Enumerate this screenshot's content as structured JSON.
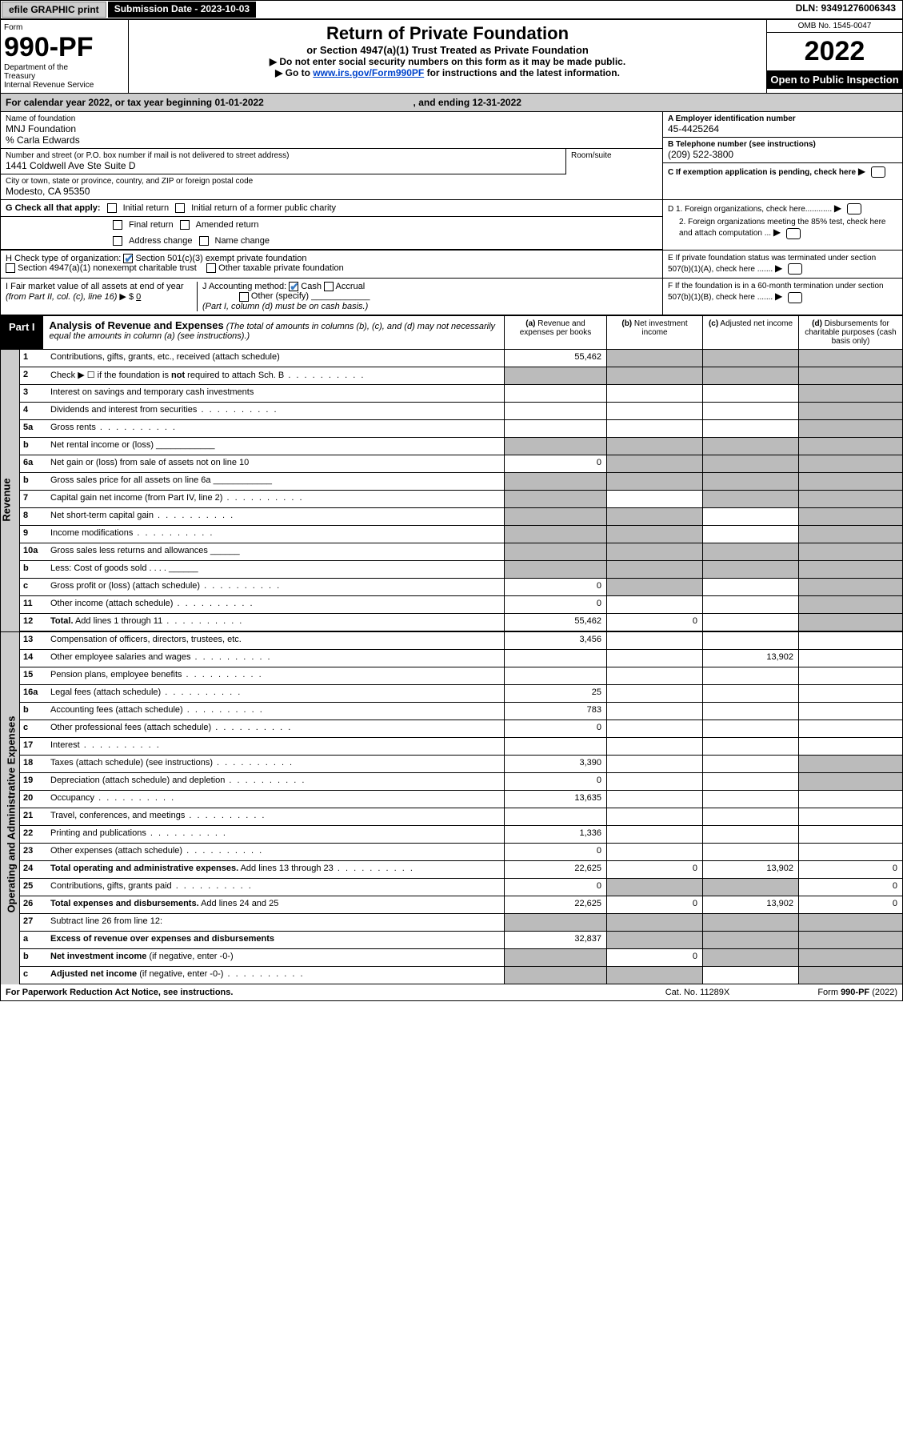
{
  "topbar": {
    "efile": "efile GRAPHIC print",
    "submission_label": "Submission Date - 2023-10-03",
    "dln": "DLN: 93491276006343"
  },
  "header": {
    "form_label": "Form",
    "form_number": "990-PF",
    "dept": "Department of the Treasury\nInternal Revenue Service",
    "title": "Return of Private Foundation",
    "subtitle": "or Section 4947(a)(1) Trust Treated as Private Foundation",
    "instr1": "▶ Do not enter social security numbers on this form as it may be made public.",
    "instr2_pre": "▶ Go to ",
    "instr2_link": "www.irs.gov/Form990PF",
    "instr2_post": " for instructions and the latest information.",
    "omb": "OMB No. 1545-0047",
    "year": "2022",
    "open": "Open to Public Inspection"
  },
  "calyear": {
    "pre": "For calendar year 2022, or tax year beginning ",
    "begin": "01-01-2022",
    "mid": ", and ending ",
    "end": "12-31-2022"
  },
  "info": {
    "name_label": "Name of foundation",
    "name": "MNJ Foundation",
    "care_of": "% Carla Edwards",
    "addr_label": "Number and street (or P.O. box number if mail is not delivered to street address)",
    "addr": "1441 Coldwell Ave Ste Suite D",
    "room_label": "Room/suite",
    "city_label": "City or town, state or province, country, and ZIP or foreign postal code",
    "city": "Modesto, CA  95350",
    "ein_label": "A Employer identification number",
    "ein": "45-4425264",
    "tel_label": "B Telephone number (see instructions)",
    "tel": "(209) 522-3800",
    "c_label": "C If exemption application is pending, check here",
    "d1": "D 1. Foreign organizations, check here............",
    "d2": "2. Foreign organizations meeting the 85% test, check here and attach computation ...",
    "e_label": "E  If private foundation status was terminated under section 507(b)(1)(A), check here .......",
    "f_label": "F  If the foundation is in a 60-month termination under section 507(b)(1)(B), check here .......",
    "g_label": "G Check all that apply:",
    "g_opts": [
      "Initial return",
      "Initial return of a former public charity",
      "Final return",
      "Amended return",
      "Address change",
      "Name change"
    ],
    "h_label": "H Check type of organization:",
    "h_opts": [
      "Section 501(c)(3) exempt private foundation",
      "Section 4947(a)(1) nonexempt charitable trust",
      "Other taxable private foundation"
    ],
    "i_label": "I Fair market value of all assets at end of year (from Part II, col. (c), line 16) ▶ $",
    "i_val": "0",
    "j_label": "J Accounting method:",
    "j_opts": [
      "Cash",
      "Accrual",
      "Other (specify)"
    ],
    "j_note": "(Part I, column (d) must be on cash basis.)"
  },
  "part1": {
    "tab": "Part I",
    "title": "Analysis of Revenue and Expenses",
    "title_note": " (The total of amounts in columns (b), (c), and (d) may not necessarily equal the amounts in column (a) (see instructions).)",
    "col_a": "(a)  Revenue and expenses per books",
    "col_b": "(b)  Net investment income",
    "col_c": "(c)  Adjusted net income",
    "col_d": "(d)  Disbursements for charitable purposes (cash basis only)"
  },
  "side_labels": {
    "revenue": "Revenue",
    "expenses": "Operating and Administrative Expenses"
  },
  "rows": [
    {
      "n": "1",
      "d": "Contributions, gifts, grants, etc., received (attach schedule)",
      "a": "55,462",
      "grey": [
        "b",
        "c",
        "d"
      ]
    },
    {
      "n": "2",
      "d": "Check ▶ ☐ if the foundation is <b>not</b> required to attach Sch. B",
      "dots": true,
      "grey": [
        "a",
        "b",
        "c",
        "d"
      ]
    },
    {
      "n": "3",
      "d": "Interest on savings and temporary cash investments",
      "grey": [
        "d"
      ]
    },
    {
      "n": "4",
      "d": "Dividends and interest from securities",
      "dots": true,
      "grey": [
        "d"
      ]
    },
    {
      "n": "5a",
      "d": "Gross rents",
      "dots": true,
      "grey": [
        "d"
      ]
    },
    {
      "n": "b",
      "d": "Net rental income or (loss)  ____________",
      "grey": [
        "a",
        "b",
        "c",
        "d"
      ]
    },
    {
      "n": "6a",
      "d": "Net gain or (loss) from sale of assets not on line 10",
      "a": "0",
      "grey": [
        "b",
        "c",
        "d"
      ]
    },
    {
      "n": "b",
      "d": "Gross sales price for all assets on line 6a ____________",
      "grey": [
        "a",
        "b",
        "c",
        "d"
      ]
    },
    {
      "n": "7",
      "d": "Capital gain net income (from Part IV, line 2)",
      "dots": true,
      "grey": [
        "a",
        "c",
        "d"
      ]
    },
    {
      "n": "8",
      "d": "Net short-term capital gain",
      "dots": true,
      "grey": [
        "a",
        "b",
        "d"
      ]
    },
    {
      "n": "9",
      "d": "Income modifications",
      "dots": true,
      "grey": [
        "a",
        "b",
        "d"
      ]
    },
    {
      "n": "10a",
      "d": "Gross sales less returns and allowances  ______",
      "grey": [
        "a",
        "b",
        "c",
        "d"
      ]
    },
    {
      "n": "b",
      "d": "Less: Cost of goods sold     .  .  .  .  ______",
      "grey": [
        "a",
        "b",
        "c",
        "d"
      ]
    },
    {
      "n": "c",
      "d": "Gross profit or (loss) (attach schedule)",
      "dots": true,
      "a": "0",
      "grey": [
        "b",
        "d"
      ]
    },
    {
      "n": "11",
      "d": "Other income (attach schedule)",
      "dots": true,
      "a": "0",
      "grey": [
        "d"
      ]
    },
    {
      "n": "12",
      "d": "<b>Total.</b> Add lines 1 through 11",
      "dots": true,
      "a": "55,462",
      "b": "0",
      "grey": [
        "d"
      ]
    },
    {
      "n": "13",
      "d": "Compensation of officers, directors, trustees, etc.",
      "a": "3,456"
    },
    {
      "n": "14",
      "d": "Other employee salaries and wages",
      "dots": true,
      "c": "13,902"
    },
    {
      "n": "15",
      "d": "Pension plans, employee benefits",
      "dots": true
    },
    {
      "n": "16a",
      "d": "Legal fees (attach schedule)",
      "dots": true,
      "a": "25"
    },
    {
      "n": "b",
      "d": "Accounting fees (attach schedule)",
      "dots": true,
      "a": "783"
    },
    {
      "n": "c",
      "d": "Other professional fees (attach schedule)",
      "dots": true,
      "a": "0"
    },
    {
      "n": "17",
      "d": "Interest",
      "dots": true
    },
    {
      "n": "18",
      "d": "Taxes (attach schedule) (see instructions)",
      "dots": true,
      "a": "3,390",
      "grey": [
        "d"
      ]
    },
    {
      "n": "19",
      "d": "Depreciation (attach schedule) and depletion",
      "dots": true,
      "a": "0",
      "grey": [
        "d"
      ]
    },
    {
      "n": "20",
      "d": "Occupancy",
      "dots": true,
      "a": "13,635"
    },
    {
      "n": "21",
      "d": "Travel, conferences, and meetings",
      "dots": true
    },
    {
      "n": "22",
      "d": "Printing and publications",
      "dots": true,
      "a": "1,336"
    },
    {
      "n": "23",
      "d": "Other expenses (attach schedule)",
      "dots": true,
      "a": "0"
    },
    {
      "n": "24",
      "d": "<b>Total operating and administrative expenses.</b> Add lines 13 through 23",
      "dots": true,
      "a": "22,625",
      "b": "0",
      "c": "13,902",
      "dd": "0"
    },
    {
      "n": "25",
      "d": "Contributions, gifts, grants paid",
      "dots": true,
      "a": "0",
      "grey": [
        "b",
        "c"
      ],
      "dd": "0"
    },
    {
      "n": "26",
      "d": "<b>Total expenses and disbursements.</b> Add lines 24 and 25",
      "a": "22,625",
      "b": "0",
      "c": "13,902",
      "dd": "0"
    },
    {
      "n": "27",
      "d": "Subtract line 26 from line 12:",
      "grey": [
        "a",
        "b",
        "c",
        "d"
      ]
    },
    {
      "n": "a",
      "d": "<b>Excess of revenue over expenses and disbursements</b>",
      "a": "32,837",
      "grey": [
        "b",
        "c",
        "d"
      ]
    },
    {
      "n": "b",
      "d": "<b>Net investment income</b> (if negative, enter -0-)",
      "grey": [
        "a",
        "c",
        "d"
      ],
      "b": "0"
    },
    {
      "n": "c",
      "d": "<b>Adjusted net income</b> (if negative, enter -0-)",
      "dots": true,
      "grey": [
        "a",
        "b",
        "d"
      ]
    }
  ],
  "footer": {
    "left": "For Paperwork Reduction Act Notice, see instructions.",
    "mid": "Cat. No. 11289X",
    "right": "Form 990-PF (2022)"
  },
  "styling": {
    "bg": "#ffffff",
    "border": "#000000",
    "grey": "#bbbbbb",
    "header_grey": "#cccccc",
    "link": "#0044cc",
    "check": "#3a7cc4",
    "font_body": 12,
    "font_small": 10,
    "font_formno": 34,
    "font_year": 34
  }
}
